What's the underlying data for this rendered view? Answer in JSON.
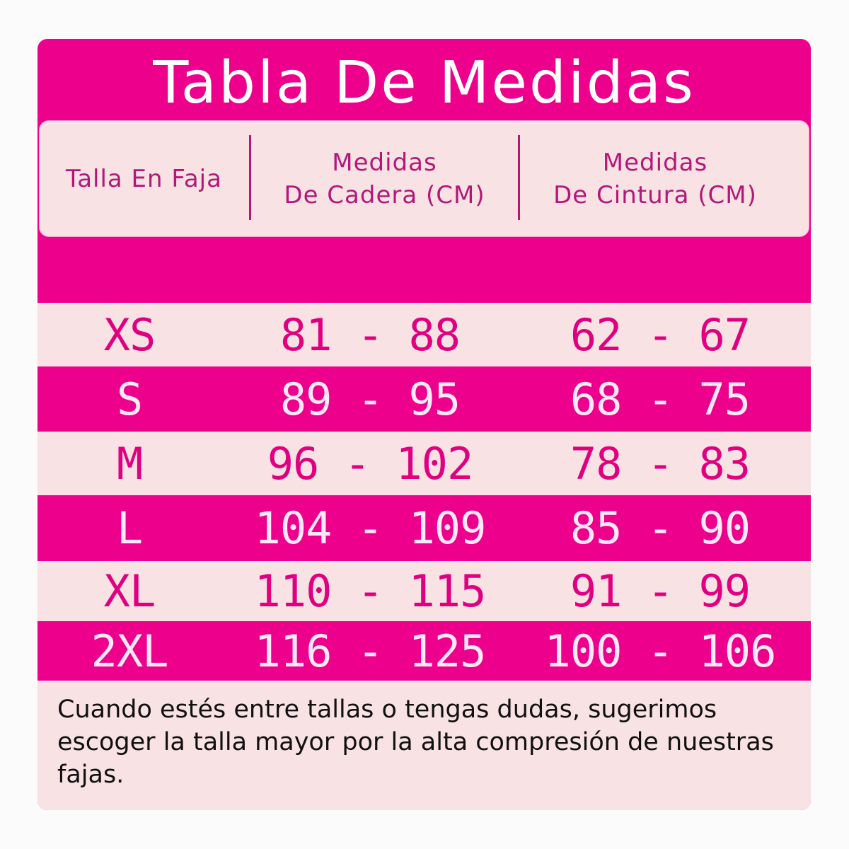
{
  "title": "Tabla De Medidas",
  "headers": {
    "size": "Talla En Faja",
    "hip_line1": "Medidas",
    "hip_line2": "De Cadera (CM)",
    "waist_line1": "Medidas",
    "waist_line2": "De Cintura (CM)"
  },
  "rows": [
    {
      "size": "XS",
      "hip": "81 - 88",
      "waist": "62 - 67"
    },
    {
      "size": "S",
      "hip": "89 - 95",
      "waist": "68 - 75"
    },
    {
      "size": "M",
      "hip": "96 - 102",
      "waist": "78 - 83"
    },
    {
      "size": "L",
      "hip": "104 - 109",
      "waist": "85 - 90"
    },
    {
      "size": "XL",
      "hip": "110 - 115",
      "waist": "91 - 99"
    },
    {
      "size": "2XL",
      "hip": "116 - 125",
      "waist": "100 - 106"
    }
  ],
  "note": "Cuando estés entre tallas o tengas dudas, sugerimos escoger la talla mayor por la alta compresión de nuestras fajas.",
  "colors": {
    "accent": "#ec008c",
    "light": "#f8e2e4"
  }
}
